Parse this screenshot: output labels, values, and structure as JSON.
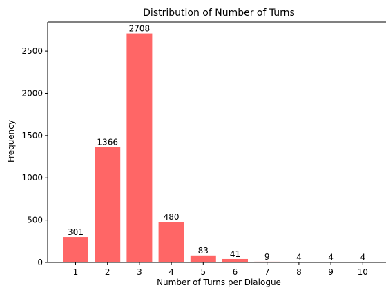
{
  "chart_data": {
    "type": "bar",
    "title": "Distribution of Number of Turns",
    "xlabel": "Number of Turns per Dialogue",
    "ylabel": "Frequency",
    "categories": [
      "1",
      "2",
      "3",
      "4",
      "5",
      "6",
      "7",
      "8",
      "9",
      "10"
    ],
    "values": [
      301,
      1366,
      2708,
      480,
      83,
      41,
      9,
      4,
      4,
      4
    ],
    "data_labels": [
      "301",
      "1366",
      "2708",
      "480",
      "83",
      "41",
      "9",
      "4",
      "4",
      "4"
    ],
    "ylim": [
      0,
      2843
    ],
    "yticks": [
      0,
      500,
      1000,
      1500,
      2000,
      2500
    ],
    "ytick_labels": [
      "0",
      "500",
      "1000",
      "1500",
      "2000",
      "2500"
    ],
    "bar_color": "#ff6666",
    "grid": false,
    "legend": "none"
  }
}
